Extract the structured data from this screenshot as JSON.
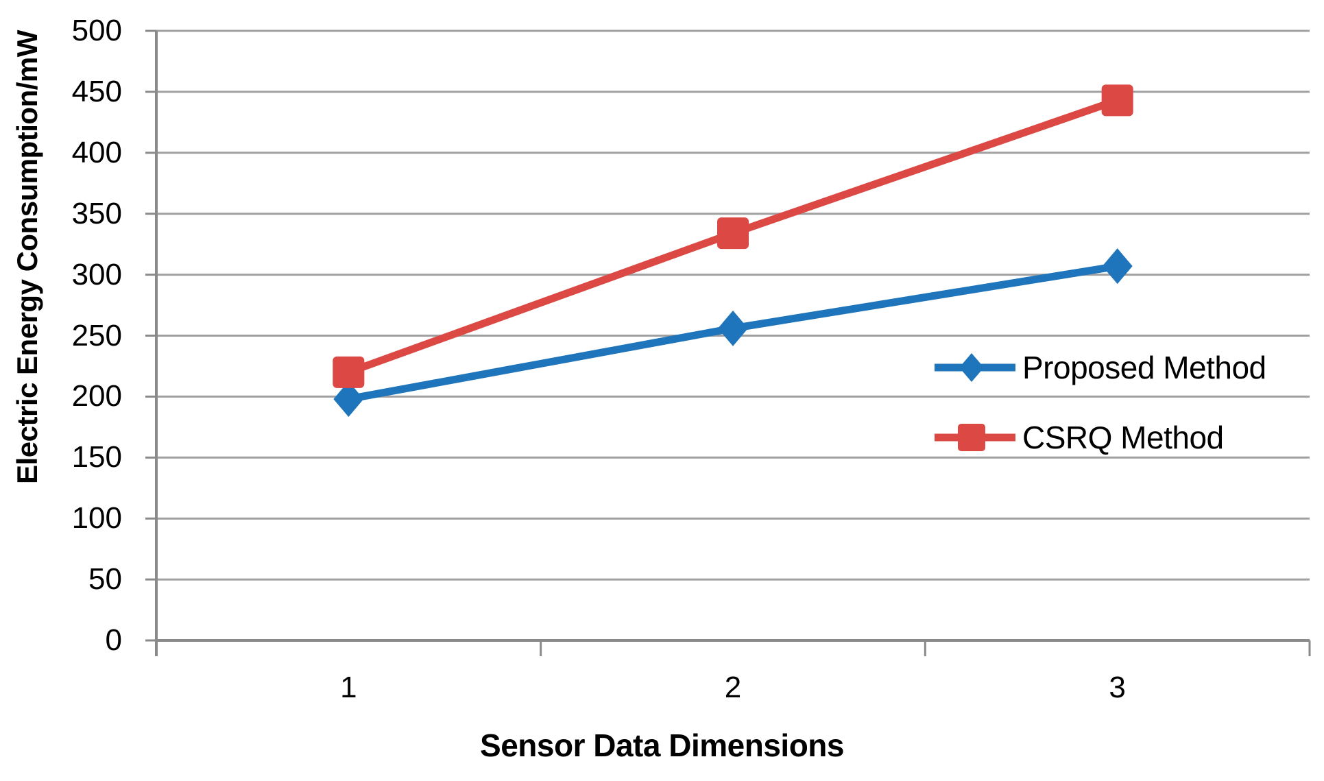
{
  "chart_data": {
    "type": "line",
    "title": "",
    "xlabel": "Sensor Data Dimensions",
    "ylabel": "Electric Energy Consumption/mW",
    "categories": [
      "1",
      "2",
      "3"
    ],
    "series": [
      {
        "name": "Proposed Method",
        "color": "#1F75BC",
        "marker": "diamond",
        "values": [
          198,
          256,
          307
        ]
      },
      {
        "name": "CSRQ Method",
        "color": "#DC4843",
        "marker": "square",
        "values": [
          220,
          334,
          443
        ]
      }
    ],
    "y_axis": {
      "min": 0,
      "max": 500,
      "step": 50,
      "ticks": [
        0,
        50,
        100,
        150,
        200,
        250,
        300,
        350,
        400,
        450,
        500
      ]
    },
    "legend_position": "middle-right",
    "grid": true,
    "colors": {
      "gridline": "#A0A0A0",
      "axis": "#8A8A8A",
      "text": "#000000",
      "background": "#FFFFFF"
    }
  }
}
